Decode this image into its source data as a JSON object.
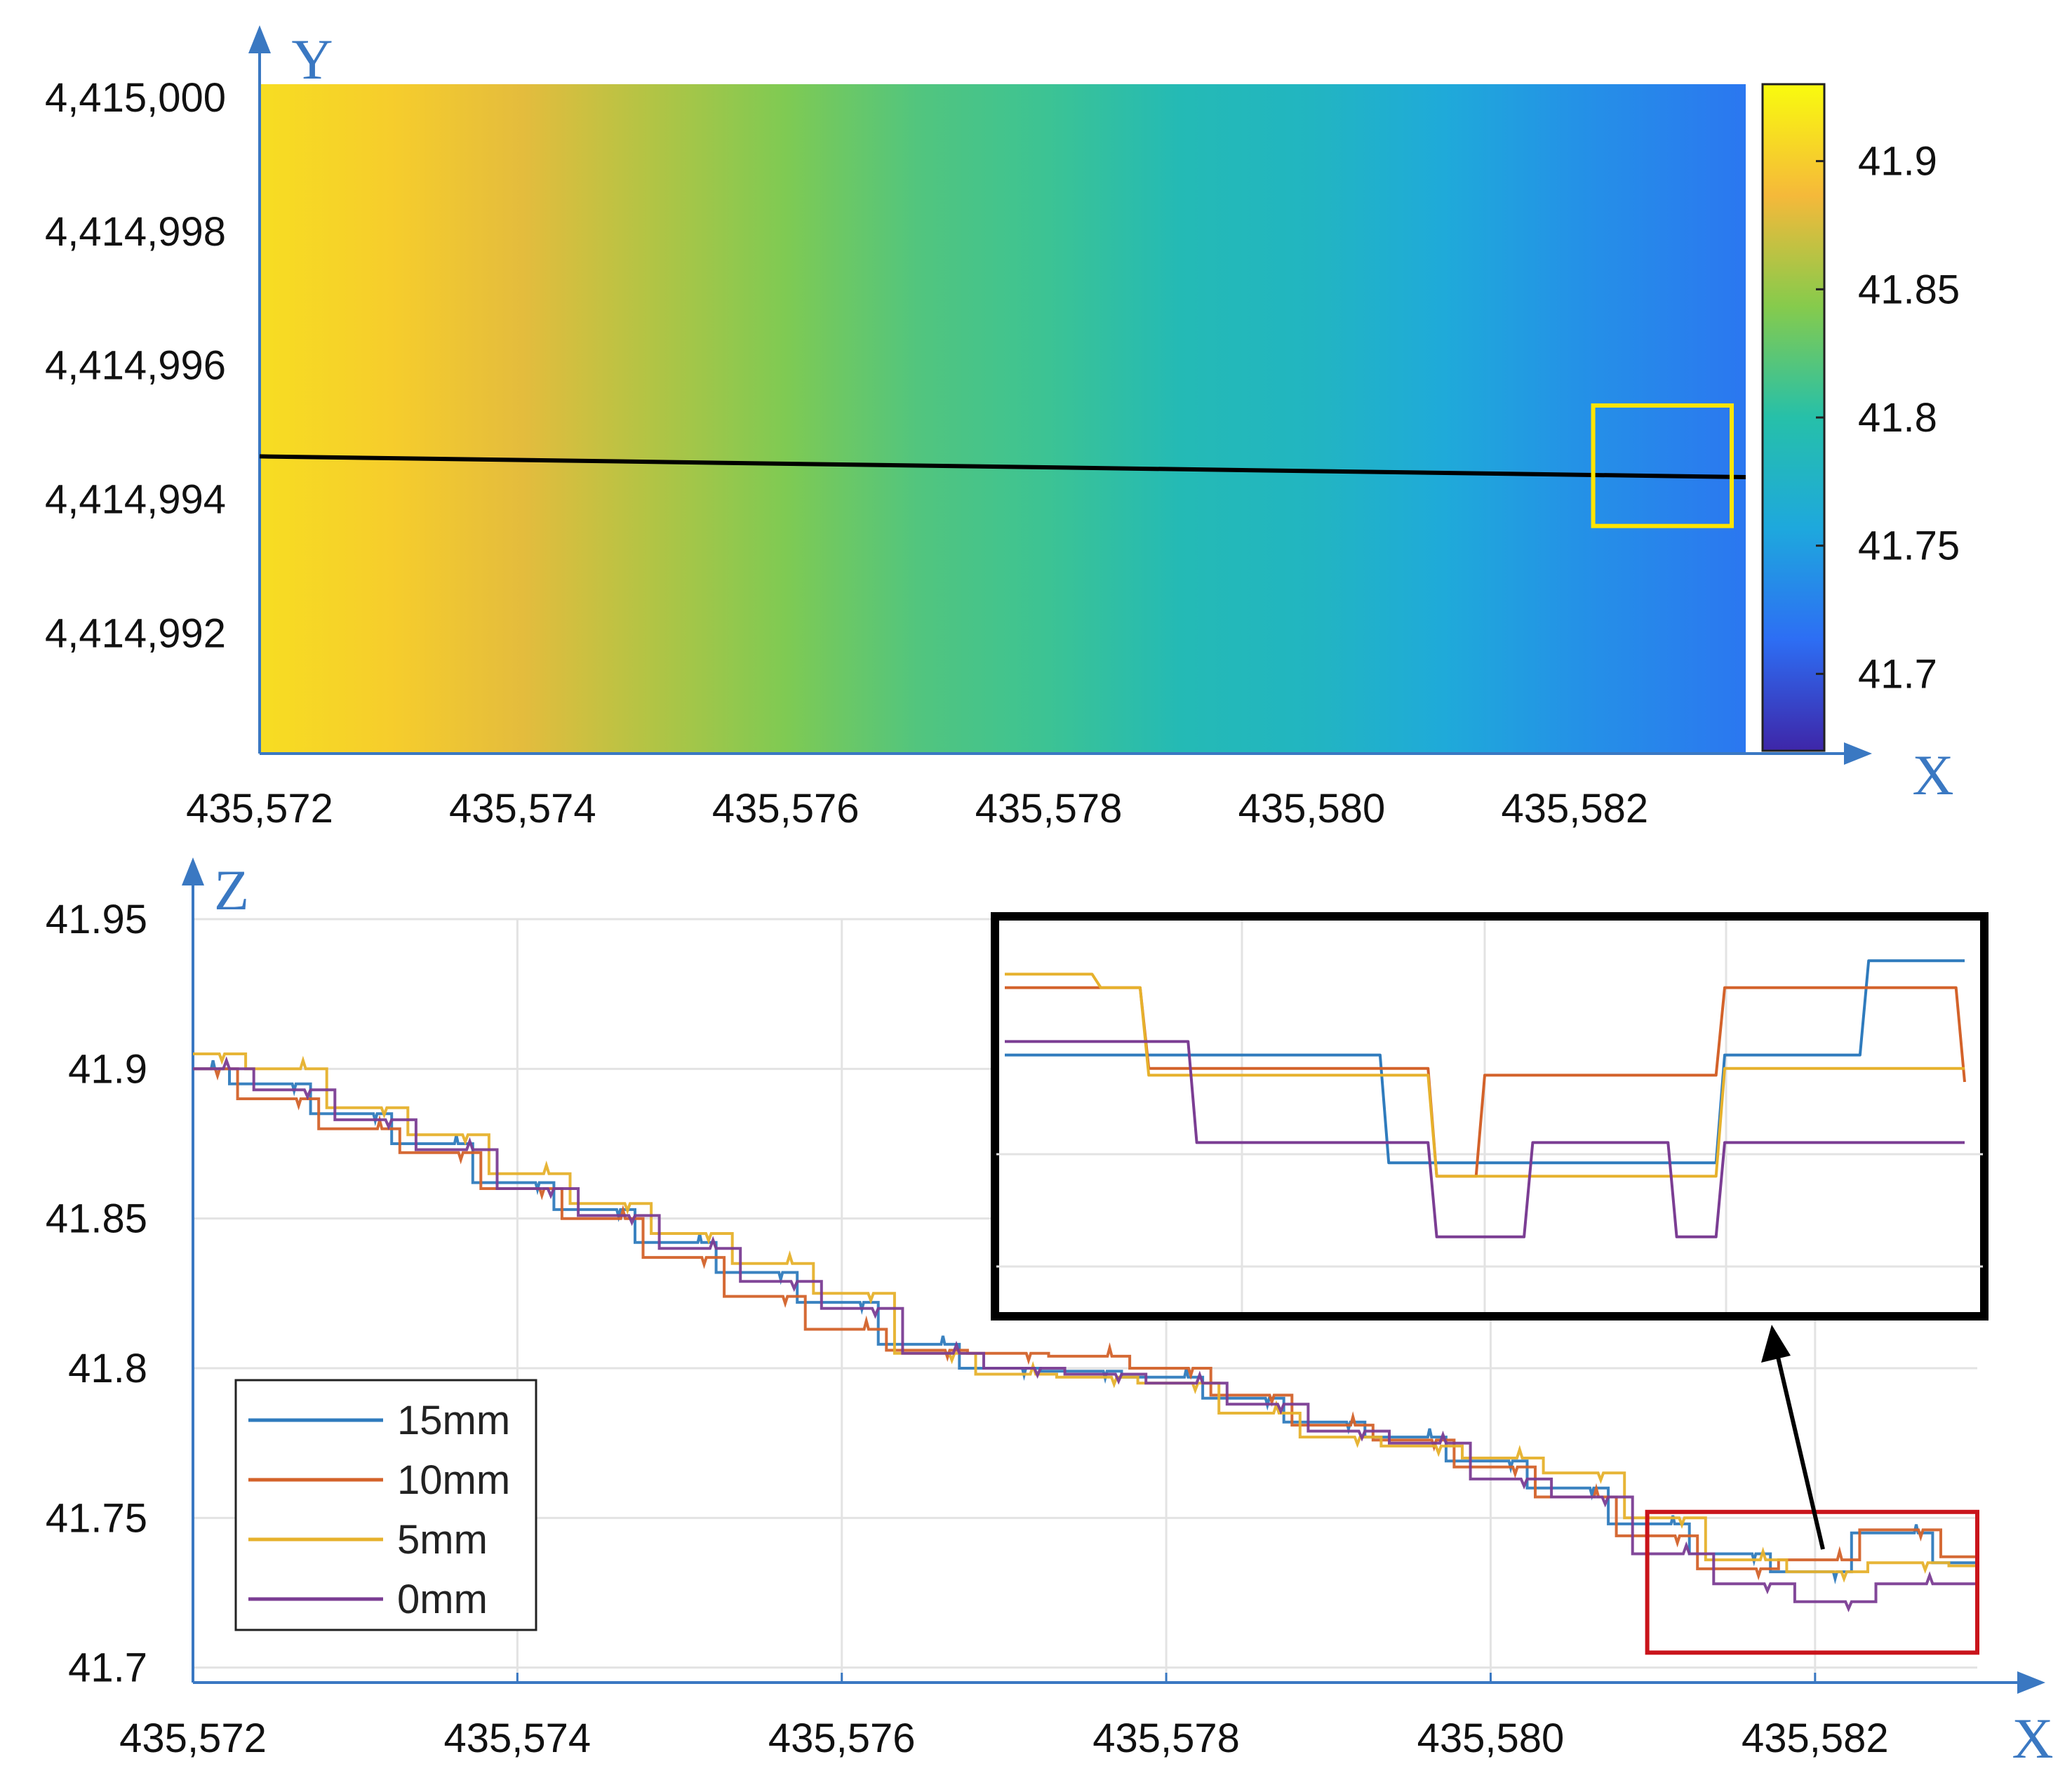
{
  "figure": {
    "heatmap": {
      "chart_data": {
        "type": "heatmap",
        "xlabel": "X",
        "ylabel": "Y",
        "xlim": [
          435572,
          435583.3
        ],
        "ylim": [
          4414990.2,
          4415000.2
        ],
        "x_ticks": [
          "435,572",
          "435,574",
          "435,576",
          "435,578",
          "435,580",
          "435,582"
        ],
        "x_tick_values": [
          435572,
          435574,
          435576,
          435578,
          435580,
          435582
        ],
        "y_ticks": [
          "4,415,000",
          "4,414,998",
          "4,414,996",
          "4,414,994",
          "4,414,992"
        ],
        "y_tick_values": [
          4415000,
          4414998,
          4414996,
          4414994,
          4414992
        ],
        "color_gradient": {
          "x": [
            435572,
            435573,
            435574,
            435575,
            435576,
            435577,
            435578,
            435579,
            435580,
            435581,
            435582,
            435583.3
          ],
          "z": [
            41.91,
            41.9,
            41.88,
            41.86,
            41.84,
            41.82,
            41.81,
            41.79,
            41.78,
            41.76,
            41.74,
            41.72
          ]
        },
        "colorbar": {
          "zlim": [
            41.67,
            41.93
          ],
          "ticks": [
            "41.9",
            "41.85",
            "41.8",
            "41.75",
            "41.7"
          ],
          "tick_values": [
            41.9,
            41.85,
            41.8,
            41.75,
            41.7
          ],
          "colors": [
            "#3e26a8",
            "#2d6ef4",
            "#1ea8dd",
            "#26c0a9",
            "#86cb4c",
            "#f5b93a",
            "#f9fb0e"
          ]
        },
        "profile_line": {
          "x": [
            435572,
            435583.3
          ],
          "y": [
            4414994.64,
            4414994.33
          ],
          "color": "#000000"
        },
        "highlight_box": {
          "x": [
            435582.3,
            435583.3
          ],
          "y": [
            4414993.6,
            4414995.4
          ],
          "color": "#ffe400"
        }
      }
    },
    "profile": {
      "chart_data": {
        "type": "line",
        "xlabel": "X",
        "ylabel": "Z",
        "xlim": [
          435572,
          435583
        ],
        "ylim": [
          41.695,
          41.95
        ],
        "x_ticks": [
          "435,572",
          "435,574",
          "435,576",
          "435,578",
          "435,580",
          "435,582"
        ],
        "x_tick_values": [
          435572,
          435574,
          435576,
          435578,
          435580,
          435582
        ],
        "y_ticks": [
          "41.95",
          "41.9",
          "41.85",
          "41.8",
          "41.75",
          "41.7"
        ],
        "y_tick_values": [
          41.95,
          41.9,
          41.85,
          41.8,
          41.75,
          41.7
        ],
        "grid": true,
        "legend_position": "lower-left",
        "x": [
          435572.0,
          435572.5,
          435573.0,
          435573.5,
          435574.0,
          435574.5,
          435575.0,
          435575.5,
          435576.0,
          435576.5,
          435577.0,
          435577.5,
          435578.0,
          435578.5,
          435579.0,
          435579.5,
          435580.0,
          435580.5,
          435581.0,
          435581.5,
          435582.0,
          435582.5,
          435583.0
        ],
        "series": [
          {
            "name": "15mm",
            "color": "#2f7bbd",
            "values": [
              41.9,
              41.895,
              41.885,
              41.875,
              41.862,
              41.853,
              41.842,
              41.832,
              41.822,
              41.808,
              41.8,
              41.799,
              41.797,
              41.79,
              41.782,
              41.777,
              41.769,
              41.76,
              41.748,
              41.738,
              41.732,
              41.745,
              41.735
            ]
          },
          {
            "name": "10mm",
            "color": "#d3622a",
            "values": [
              41.9,
              41.89,
              41.88,
              41.872,
              41.86,
              41.85,
              41.837,
              41.824,
              41.813,
              41.806,
              41.805,
              41.804,
              41.8,
              41.791,
              41.781,
              41.776,
              41.767,
              41.757,
              41.744,
              41.733,
              41.736,
              41.746,
              41.737
            ]
          },
          {
            "name": "5mm",
            "color": "#e6b12c",
            "values": [
              41.905,
              41.9,
              41.887,
              41.878,
              41.865,
              41.855,
              41.845,
              41.835,
              41.825,
              41.805,
              41.798,
              41.797,
              41.795,
              41.785,
              41.777,
              41.774,
              41.77,
              41.765,
              41.75,
              41.736,
              41.732,
              41.735,
              41.734
            ]
          },
          {
            "name": "0mm",
            "color": "#7b3d93",
            "values": [
              41.9,
              41.893,
              41.883,
              41.873,
              41.86,
              41.851,
              41.84,
              41.829,
              41.82,
              41.805,
              41.8,
              41.798,
              41.795,
              41.788,
              41.779,
              41.775,
              41.763,
              41.757,
              41.738,
              41.728,
              41.722,
              41.728,
              41.728
            ]
          }
        ],
        "zoom_region": {
          "x": [
            435581.0,
            435583.0
          ],
          "y": [
            41.705,
            41.752
          ],
          "color": "#c9141b"
        }
      }
    },
    "inset": {
      "chart_data": {
        "type": "line",
        "xlim": [
          0,
          100
        ],
        "ylim": [
          0,
          100
        ],
        "x": [
          0,
          5,
          10,
          15,
          20,
          25,
          30,
          35,
          40,
          45,
          50,
          55,
          60,
          65,
          70,
          75,
          80,
          85,
          90,
          95,
          100
        ],
        "series": [
          {
            "name": "15mm",
            "color": "#2f7bbd",
            "values": [
              68,
              68,
              68,
              68,
              68,
              68,
              68,
              68,
              36,
              36,
              36,
              36,
              36,
              36,
              36,
              68,
              68,
              68,
              96,
              96,
              96
            ]
          },
          {
            "name": "10mm",
            "color": "#d3622a",
            "values": [
              88,
              88,
              88,
              64,
              64,
              64,
              64,
              64,
              64,
              32,
              62,
              62,
              62,
              62,
              62,
              88,
              88,
              88,
              88,
              88,
              60
            ]
          },
          {
            "name": "5mm",
            "color": "#e6b12c",
            "values": [
              92,
              92,
              88,
              62,
              62,
              62,
              62,
              62,
              62,
              32,
              32,
              32,
              32,
              32,
              32,
              64,
              64,
              64,
              64,
              64,
              64
            ]
          },
          {
            "name": "0mm",
            "color": "#7b3d93",
            "values": [
              72,
              72,
              72,
              72,
              42,
              42,
              42,
              42,
              42,
              14,
              14,
              42,
              42,
              42,
              14,
              42,
              42,
              42,
              42,
              42,
              42
            ]
          }
        ],
        "arrow_color": "#000000"
      }
    }
  }
}
